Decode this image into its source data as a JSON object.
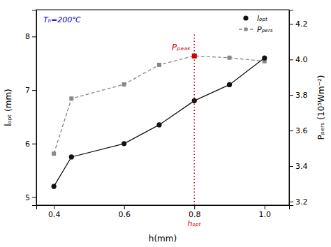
{
  "chart_data": {
    "type": "line",
    "x_label": "h(mm)",
    "y_label": "lₒₚₜ (mm)",
    "y2_label": "Pₚₑᵣₛ (10⁵Wm⁻²)",
    "x": [
      0.4,
      0.45,
      0.6,
      0.7,
      0.8,
      0.9,
      1.0
    ],
    "series": [
      {
        "name": "lₒₚₜ",
        "color": "#111111",
        "marker": "circle",
        "line_style": "solid",
        "values": [
          5.2,
          5.75,
          6.0,
          6.35,
          6.8,
          7.1,
          7.6
        ]
      },
      {
        "name": "Pₚₑᵣₛ",
        "color": "#888888",
        "marker": "square",
        "line_style": "dashed",
        "axis": "y2",
        "values": [
          3.47,
          3.78,
          3.86,
          3.97,
          4.02,
          4.01,
          3.99
        ]
      }
    ],
    "xlim": [
      0.35,
      1.07
    ],
    "xticks": [
      0.4,
      0.6,
      0.8,
      {
        "value": 1.0,
        "label": "1.0"
      }
    ],
    "ylim": [
      4.85,
      8.5
    ],
    "yticks": [
      5,
      6,
      7,
      8
    ],
    "y2lim": [
      3.18,
      4.28
    ],
    "y2ticks": [
      3.2,
      3.4,
      3.6,
      3.8,
      {
        "value": 4.0,
        "label": "4.0"
      },
      4.2
    ],
    "annotations": [
      {
        "text": "Pₚₑₐₖ",
        "x": 0.8,
        "y": 4.02,
        "axis": "y2",
        "color": "#cc0000"
      },
      {
        "text": "hₒₚₜ",
        "x": 0.8,
        "color": "#cc0000"
      },
      {
        "text": "Tₕ=200℃",
        "color": "#0000cc"
      }
    ],
    "legend": "upper right",
    "grid": false
  }
}
